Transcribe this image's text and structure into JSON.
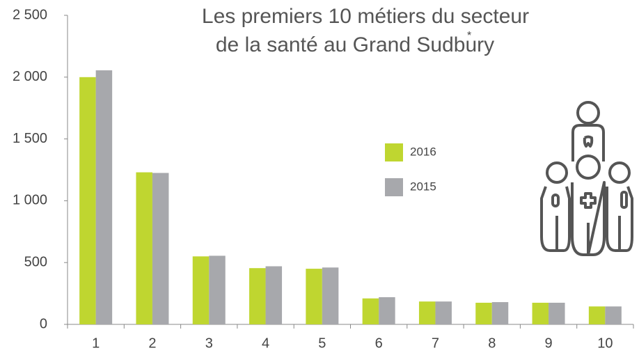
{
  "chart_data": {
    "type": "bar",
    "title": [
      "Les premiers 10 métiers du secteur",
      "de la santé au Grand Sudbury"
    ],
    "title_note": "*",
    "categories": [
      "1",
      "2",
      "3",
      "4",
      "5",
      "6",
      "7",
      "8",
      "9",
      "10"
    ],
    "series": [
      {
        "name": "2016",
        "color": "#bfd630",
        "values": [
          2000,
          1230,
          550,
          455,
          450,
          210,
          185,
          175,
          175,
          145
        ]
      },
      {
        "name": "2015",
        "color": "#a7a8ac",
        "values": [
          2055,
          1225,
          555,
          470,
          460,
          220,
          185,
          180,
          175,
          145
        ]
      }
    ],
    "ylim": [
      0,
      2500
    ],
    "yticks": [
      0,
      500,
      {
        "value": 1000,
        "label": "1 000"
      },
      {
        "value": 1500,
        "label": "1 500"
      },
      {
        "value": 2000,
        "label": "2 000"
      },
      {
        "value": 2500,
        "label": "2 500"
      }
    ],
    "grid": false
  }
}
